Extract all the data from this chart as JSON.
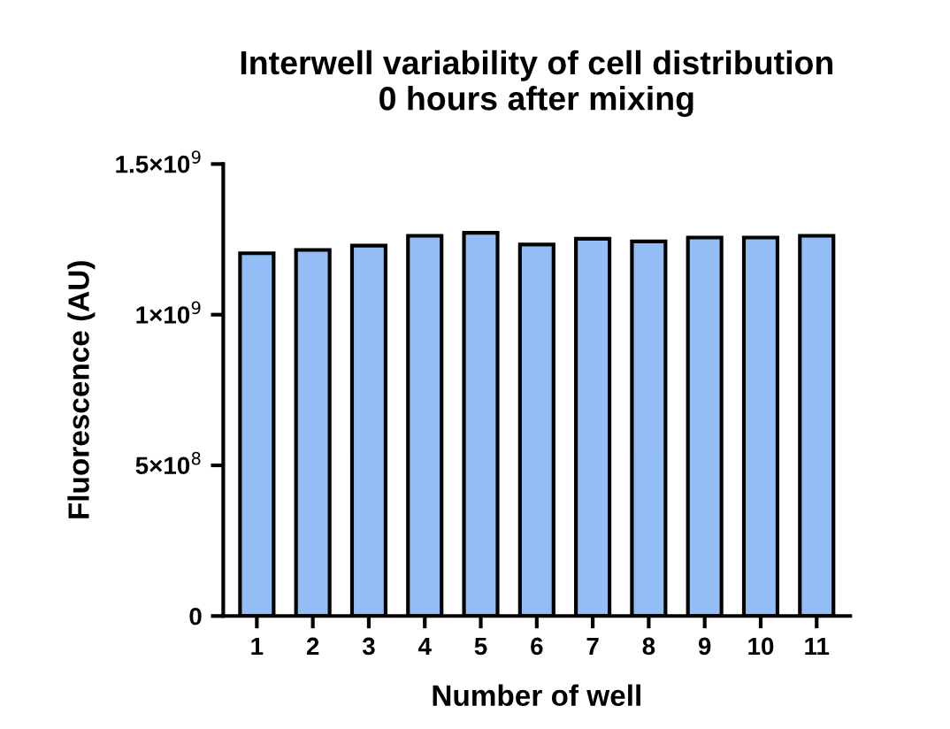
{
  "chart_data": {
    "type": "bar",
    "title": "Interwell variability of cell distribution\n0 hours after mixing",
    "xlabel": "Number of well",
    "ylabel": "Fluorescence (AU)",
    "categories": [
      "1",
      "2",
      "3",
      "4",
      "5",
      "6",
      "7",
      "8",
      "9",
      "10",
      "11"
    ],
    "values": [
      1204000000.0,
      1215000000.0,
      1229000000.0,
      1262000000.0,
      1272000000.0,
      1233000000.0,
      1252000000.0,
      1243000000.0,
      1256000000.0,
      1256000000.0,
      1262000000.0
    ],
    "color": "#92bdf5",
    "ylim": [
      0,
      1500000000.0
    ],
    "yticks": [
      0,
      {
        "value": 500000000.0,
        "label": "5×10$^{8}$"
      },
      {
        "value": 1000000000.0,
        "label": "1×10$^{9}$"
      },
      {
        "value": 1500000000.0,
        "label": "1.5×10$^{9}$"
      }
    ],
    "grid": false
  }
}
